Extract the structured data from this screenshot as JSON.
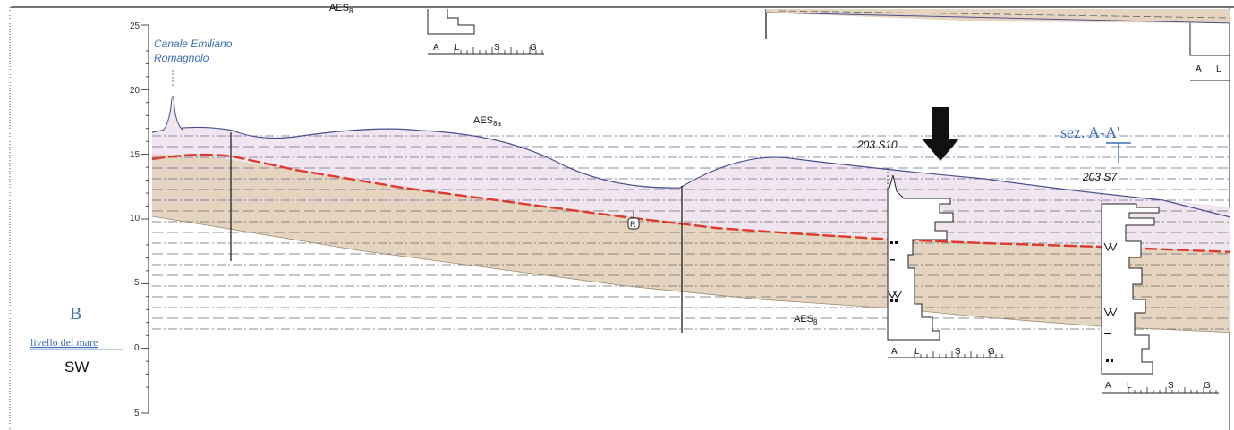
{
  "scale": {
    "ticks": [
      "25",
      "20",
      "15",
      "10",
      "5",
      "0",
      "5"
    ]
  },
  "labels": {
    "canale_line1": "Canale Emiliano",
    "canale_line2": "Romagnolo",
    "aes8a_main": "AES",
    "aes8a_sub": "8a",
    "aes8_main": "AES",
    "aes8_sub": "8",
    "aes8_top_main": "AES",
    "aes8_top_sub": "8",
    "borehole_s10": "203 S10",
    "borehole_s7": "203 S7",
    "section": "sez. A-A'",
    "r_marker": "R"
  },
  "legend": {
    "letter": "B",
    "sea_level": "livello del mare",
    "direction": "SW"
  },
  "grain_scale": {
    "a": "A",
    "l": "L",
    "s": "S",
    "g": "G"
  },
  "colors": {
    "upper_unit": "#f1e6ef",
    "lower_unit": "#e4d4c0",
    "red_boundary": "#e0392b",
    "section_blue": "#3b6fb5"
  }
}
